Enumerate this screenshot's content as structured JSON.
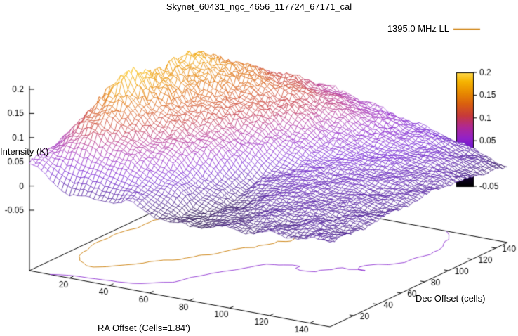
{
  "title": "Skynet_60431_ngc_4656_117724_67171_cal",
  "legend": {
    "label": "1395.0 MHz LL",
    "color": "#cc7a00"
  },
  "background": "#ffffff",
  "chart_data": {
    "type": "surface",
    "title": "Skynet_60431_ngc_4656_117724_67171_cal",
    "xlabel": "RA Offset (Cells=1.84')",
    "ylabel": "Dec Offset (cells)",
    "zlabel": "Intensity (K)",
    "x_range": [
      0,
      150
    ],
    "y_range": [
      0,
      150
    ],
    "z_range": [
      -0.05,
      0.2
    ],
    "x_ticks": [
      20,
      40,
      60,
      80,
      100,
      120,
      140
    ],
    "y_ticks": [
      20,
      40,
      60,
      80,
      100,
      120,
      140
    ],
    "z_ticks": [
      -0.05,
      0,
      0.05,
      0.1,
      0.15,
      0.2
    ],
    "colorbar_ticks": [
      -0.05,
      0,
      0.05,
      0.1,
      0.15,
      0.2
    ],
    "legend_position": "top-right",
    "grid_on": false,
    "palette": [
      [
        0.0,
        "#000000"
      ],
      [
        0.08,
        "#10002a"
      ],
      [
        0.2,
        "#3c0a8c"
      ],
      [
        0.32,
        "#6a14d2"
      ],
      [
        0.42,
        "#9222c8"
      ],
      [
        0.52,
        "#b02894"
      ],
      [
        0.62,
        "#c73a3a"
      ],
      [
        0.72,
        "#d95f10"
      ],
      [
        0.82,
        "#e88a00"
      ],
      [
        0.92,
        "#f6b400"
      ],
      [
        1.0,
        "#ffd84a"
      ]
    ],
    "contour_levels": [
      {
        "value": 0.1,
        "color": "#c87a00"
      },
      {
        "value": 0.02,
        "color": "#8c2fd0"
      }
    ],
    "grid_axes_note": "z_grid rows run along Dec (y) 0..150 step 10, columns along RA (x) 0..150 step 10",
    "z_grid": [
      [
        0.05,
        0.02,
        0.0,
        -0.005,
        0.0,
        0.005,
        -0.01,
        -0.02,
        -0.02,
        -0.015,
        -0.01,
        -0.01,
        -0.005,
        -0.005,
        0.0,
        0.0
      ],
      [
        0.06,
        0.06,
        0.05,
        0.04,
        0.03,
        0.02,
        0.0,
        -0.02,
        -0.02,
        -0.015,
        -0.01,
        -0.005,
        -0.005,
        0.0,
        0.0,
        0.0
      ],
      [
        0.06,
        0.09,
        0.1,
        0.08,
        0.06,
        0.04,
        0.02,
        -0.01,
        -0.02,
        -0.01,
        -0.005,
        0.0,
        0.0,
        0.0,
        0.0,
        -0.005
      ],
      [
        0.07,
        0.11,
        0.13,
        0.1,
        0.08,
        0.06,
        0.03,
        0.0,
        -0.015,
        -0.01,
        0.0,
        0.005,
        0.005,
        0.0,
        0.0,
        -0.005
      ],
      [
        0.07,
        0.13,
        0.16,
        0.12,
        0.09,
        0.08,
        0.05,
        0.01,
        -0.01,
        0.0,
        0.01,
        0.01,
        0.005,
        0.005,
        0.0,
        0.0
      ],
      [
        0.08,
        0.15,
        0.19,
        0.14,
        0.11,
        0.09,
        0.07,
        0.03,
        0.0,
        0.01,
        0.015,
        0.01,
        0.01,
        0.005,
        0.0,
        0.0
      ],
      [
        0.08,
        0.14,
        0.18,
        0.15,
        0.12,
        0.1,
        0.08,
        0.05,
        0.01,
        0.015,
        0.02,
        0.015,
        0.01,
        0.01,
        0.005,
        0.0
      ],
      [
        0.08,
        0.13,
        0.17,
        0.15,
        0.13,
        0.11,
        0.09,
        0.06,
        0.03,
        0.02,
        0.02,
        0.02,
        0.015,
        0.01,
        0.005,
        0.0
      ],
      [
        0.07,
        0.12,
        0.16,
        0.15,
        0.13,
        0.12,
        0.1,
        0.08,
        0.05,
        0.03,
        0.025,
        0.02,
        0.02,
        0.015,
        0.01,
        0.005
      ],
      [
        0.07,
        0.12,
        0.17,
        0.16,
        0.14,
        0.12,
        0.11,
        0.09,
        0.06,
        0.04,
        0.03,
        0.025,
        0.02,
        0.015,
        0.01,
        0.005
      ],
      [
        0.06,
        0.11,
        0.18,
        0.16,
        0.14,
        0.13,
        0.11,
        0.1,
        0.08,
        0.05,
        0.035,
        0.03,
        0.025,
        0.02,
        0.01,
        0.0
      ],
      [
        0.06,
        0.1,
        0.16,
        0.15,
        0.14,
        0.13,
        0.12,
        0.1,
        0.08,
        0.06,
        0.04,
        0.03,
        0.025,
        0.02,
        0.01,
        0.0
      ],
      [
        0.05,
        0.09,
        0.14,
        0.14,
        0.13,
        0.12,
        0.11,
        0.1,
        0.09,
        0.07,
        0.05,
        0.035,
        0.03,
        0.02,
        0.01,
        -0.005
      ],
      [
        0.05,
        0.08,
        0.12,
        0.12,
        0.12,
        0.11,
        0.1,
        0.09,
        0.08,
        0.07,
        0.05,
        0.04,
        0.03,
        0.02,
        0.005,
        -0.01
      ],
      [
        0.05,
        0.07,
        0.09,
        0.1,
        0.1,
        0.1,
        0.09,
        0.08,
        0.07,
        0.06,
        0.05,
        0.04,
        0.03,
        0.015,
        0.0,
        -0.01
      ],
      [
        0.04,
        0.06,
        0.07,
        0.08,
        0.08,
        0.08,
        0.08,
        0.07,
        0.06,
        0.05,
        0.04,
        0.03,
        0.02,
        0.01,
        -0.005,
        -0.02
      ]
    ]
  }
}
